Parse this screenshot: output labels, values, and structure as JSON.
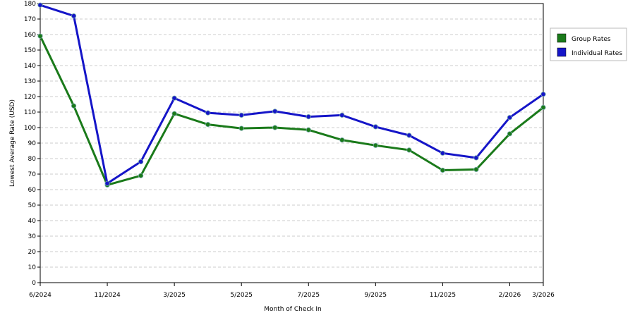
{
  "chart_data": {
    "type": "line",
    "x_label": "Month of Check In",
    "y_label": "Lowest Average Rate (USD)",
    "categories": [
      "6/2024",
      null,
      "11/2024",
      null,
      "3/2025",
      null,
      "5/2025",
      null,
      "7/2025",
      null,
      "9/2025",
      null,
      "11/2025",
      null,
      "2/2026",
      "3/2026"
    ],
    "series": [
      {
        "name": "Group Rates",
        "color": "#1a7a1a",
        "values": [
          159,
          114,
          63,
          69,
          109,
          102,
          99.5,
          100,
          98.5,
          92,
          88.5,
          85.5,
          72.5,
          73,
          96,
          113
        ]
      },
      {
        "name": "Individual Rates",
        "color": "#1515c8",
        "values": [
          179,
          172,
          64,
          78,
          119,
          109.5,
          108,
          110.5,
          107,
          108,
          100.5,
          95,
          83.5,
          80.5,
          106.5,
          121.5
        ]
      }
    ],
    "ylim": [
      0,
      180
    ],
    "yticks": [
      0,
      10,
      20,
      30,
      40,
      50,
      60,
      70,
      80,
      90,
      100,
      110,
      120,
      130,
      140,
      150,
      160,
      170,
      180
    ],
    "grid": true,
    "legend": "right"
  }
}
